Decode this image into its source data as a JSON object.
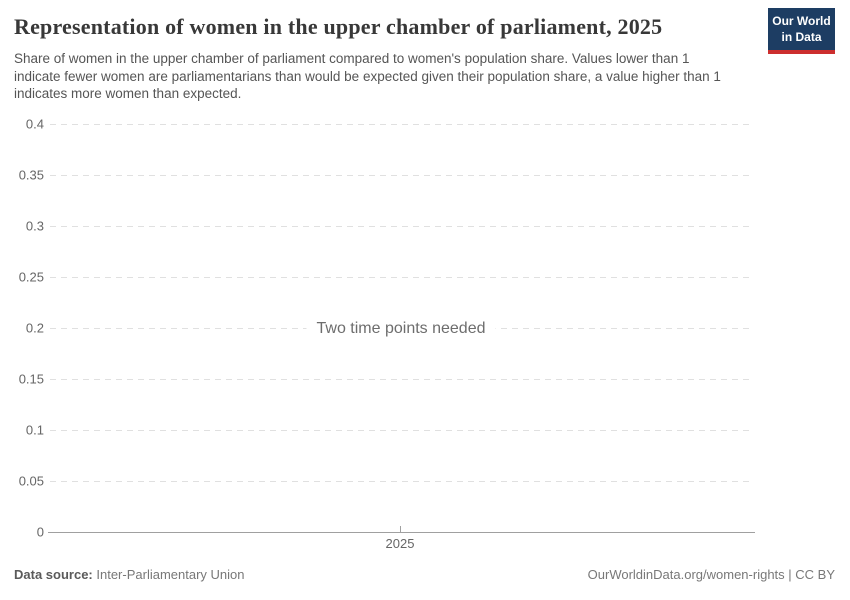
{
  "header": {
    "title": "Representation of women in the upper chamber of parliament, 2025",
    "logo": {
      "line1": "Our World",
      "line2": "in Data",
      "bg_color": "#1d3d63",
      "accent_color": "#cc2e2e"
    }
  },
  "subtitle": "Share of women in the upper chamber of parliament compared to women's population share. Values lower than 1 indicate fewer women are parliamentarians than would be expected given their population share, a value higher than 1 indicates more women than expected.",
  "chart_data": {
    "type": "line",
    "title": "Representation of women in the upper chamber of parliament, 2025",
    "series": [],
    "empty_message": "Two time points needed",
    "x_ticks": [
      "2025"
    ],
    "y_ticks": [
      0.4,
      0.35,
      0.3,
      0.25,
      0.2,
      0.15,
      0.1,
      0.05,
      0
    ],
    "y_tick_labels": [
      "0.4",
      "0.35",
      "0.3",
      "0.25",
      "0.2",
      "0.15",
      "0.1",
      "0.05",
      "0"
    ],
    "ylim": [
      0,
      0.4
    ],
    "xlabel": "",
    "ylabel": "",
    "grid": "horizontal-dashed",
    "gridline_color": "#e0e0e0",
    "axis_line_color": "#a0a0a0",
    "tick_label_color": "#666666"
  },
  "footer": {
    "source_label": "Data source:",
    "source_value": "Inter-Parliamentary Union",
    "right_text": "OurWorldinData.org/women-rights | CC BY"
  }
}
